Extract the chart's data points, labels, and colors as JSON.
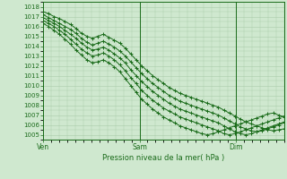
{
  "title": "Pression niveau de la mer( hPa )",
  "ylabel_values": [
    1005,
    1006,
    1007,
    1008,
    1009,
    1010,
    1011,
    1012,
    1013,
    1014,
    1015,
    1016,
    1017,
    1018
  ],
  "ylim": [
    1004.5,
    1018.5
  ],
  "background_color": "#cfe8cf",
  "grid_color": "#aaccaa",
  "line_color": "#1a6b1a",
  "tick_label_color": "#1a6b1a",
  "xlabel_color": "#1a6b1a",
  "day_labels": [
    "Ven",
    "Sam",
    "Dim"
  ],
  "day_positions": [
    0.0,
    0.4,
    0.8
  ],
  "xlim": [
    0.0,
    1.0
  ],
  "lines": [
    [
      1017.5,
      1017.3,
      1017.0,
      1016.8,
      1016.5,
      1016.2,
      1015.8,
      1015.3,
      1015.0,
      1014.8,
      1015.0,
      1015.2,
      1014.9,
      1014.6,
      1014.3,
      1013.8,
      1013.2,
      1012.6,
      1012.0,
      1011.5,
      1011.0,
      1010.6,
      1010.2,
      1009.8,
      1009.5,
      1009.2,
      1009.0,
      1008.8,
      1008.6,
      1008.4,
      1008.2,
      1008.0,
      1007.8,
      1007.5,
      1007.2,
      1006.9,
      1006.6,
      1006.3,
      1006.1,
      1005.9,
      1005.7,
      1005.5,
      1005.4,
      1005.5,
      1005.6
    ],
    [
      1017.2,
      1016.9,
      1016.6,
      1016.3,
      1016.0,
      1015.7,
      1015.3,
      1014.8,
      1014.4,
      1014.1,
      1014.3,
      1014.5,
      1014.2,
      1013.9,
      1013.5,
      1013.0,
      1012.4,
      1011.8,
      1011.2,
      1010.7,
      1010.2,
      1009.8,
      1009.4,
      1009.0,
      1008.7,
      1008.4,
      1008.2,
      1008.0,
      1007.8,
      1007.6,
      1007.4,
      1007.2,
      1007.0,
      1006.7,
      1006.4,
      1006.1,
      1005.8,
      1005.6,
      1005.4,
      1005.3,
      1005.4,
      1005.6,
      1005.8,
      1006.0,
      1006.2
    ],
    [
      1016.9,
      1016.6,
      1016.3,
      1016.0,
      1015.6,
      1015.2,
      1014.8,
      1014.3,
      1013.9,
      1013.6,
      1013.7,
      1013.9,
      1013.6,
      1013.2,
      1012.8,
      1012.3,
      1011.6,
      1011.0,
      1010.4,
      1009.9,
      1009.4,
      1009.0,
      1008.6,
      1008.2,
      1007.9,
      1007.6,
      1007.4,
      1007.2,
      1007.0,
      1006.8,
      1006.6,
      1006.4,
      1006.2,
      1005.9,
      1005.6,
      1005.3,
      1005.1,
      1005.0,
      1005.1,
      1005.3,
      1005.5,
      1005.7,
      1005.9,
      1006.1,
      1006.3
    ],
    [
      1016.6,
      1016.3,
      1016.0,
      1015.6,
      1015.2,
      1014.7,
      1014.2,
      1013.7,
      1013.3,
      1013.0,
      1013.1,
      1013.3,
      1013.0,
      1012.6,
      1012.1,
      1011.5,
      1010.8,
      1010.2,
      1009.5,
      1009.0,
      1008.5,
      1008.1,
      1007.7,
      1007.4,
      1007.1,
      1006.8,
      1006.6,
      1006.4,
      1006.2,
      1006.0,
      1005.8,
      1005.6,
      1005.4,
      1005.1,
      1005.0,
      1005.1,
      1005.3,
      1005.5,
      1005.7,
      1005.9,
      1006.1,
      1006.3,
      1006.5,
      1006.7,
      1006.9
    ],
    [
      1016.3,
      1016.0,
      1015.6,
      1015.2,
      1014.7,
      1014.2,
      1013.6,
      1013.1,
      1012.6,
      1012.3,
      1012.4,
      1012.6,
      1012.3,
      1011.9,
      1011.4,
      1010.7,
      1010.0,
      1009.3,
      1008.6,
      1008.1,
      1007.6,
      1007.2,
      1006.8,
      1006.5,
      1006.2,
      1005.9,
      1005.7,
      1005.5,
      1005.3,
      1005.1,
      1005.0,
      1005.1,
      1005.3,
      1005.5,
      1005.7,
      1005.9,
      1006.1,
      1006.3,
      1006.5,
      1006.7,
      1006.9,
      1007.1,
      1007.2,
      1007.0,
      1006.8
    ]
  ]
}
